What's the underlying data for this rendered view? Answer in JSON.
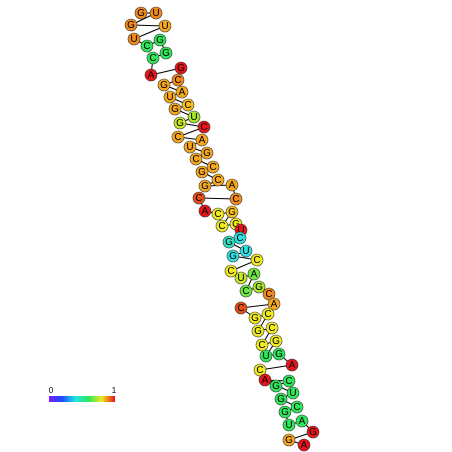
{
  "nodes": [
    {
      "label": "G",
      "color": "#f08a1c"
    },
    {
      "label": "U",
      "color": "#f08a1c"
    },
    {
      "label": "G",
      "color": "#f08a1c"
    },
    {
      "label": "U",
      "color": "#f5a81e"
    },
    {
      "label": "U",
      "color": "#f08a1c"
    },
    {
      "label": "C",
      "color": "#2ee65a"
    },
    {
      "label": "G",
      "color": "#2ee65a"
    },
    {
      "label": "G",
      "color": "#2ee65a"
    },
    {
      "label": "C",
      "color": "#2ee65a"
    },
    {
      "label": "A",
      "color": "#e8141a"
    },
    {
      "label": "G",
      "color": "#e8141a"
    },
    {
      "label": "C",
      "color": "#f08a1c"
    },
    {
      "label": "G",
      "color": "#f5a81e"
    },
    {
      "label": "A",
      "color": "#f5a81e"
    },
    {
      "label": "U",
      "color": "#f5a81e"
    },
    {
      "label": "C",
      "color": "#f5c01e"
    },
    {
      "label": "G",
      "color": "#f5a81e"
    },
    {
      "label": "U",
      "color": "#a5e62c"
    },
    {
      "label": "G",
      "color": "#c8e628"
    },
    {
      "label": "C",
      "color": "#e8141a"
    },
    {
      "label": "C",
      "color": "#f5a81e"
    },
    {
      "label": "A",
      "color": "#f5a81e"
    },
    {
      "label": "U",
      "color": "#f5a81e"
    },
    {
      "label": "G",
      "color": "#f5a81e"
    },
    {
      "label": "C",
      "color": "#f5a81e"
    },
    {
      "label": "C",
      "color": "#f5a81e"
    },
    {
      "label": "G",
      "color": "#f5a81e"
    },
    {
      "label": "C",
      "color": "#f5a81e"
    },
    {
      "label": "G",
      "color": "#f5a81e"
    },
    {
      "label": "A",
      "color": "#f5a81e"
    },
    {
      "label": "C",
      "color": "#f08a1c"
    },
    {
      "label": "C",
      "color": "#e8501a"
    },
    {
      "label": "A",
      "color": "#e8141a"
    },
    {
      "label": "C",
      "color": "#f0ea22"
    },
    {
      "label": "G",
      "color": "#f5c01e"
    },
    {
      "label": "C",
      "color": "#f0ea22"
    },
    {
      "label": "G",
      "color": "#f0ea22"
    },
    {
      "label": "U",
      "color": "#e8141a"
    },
    {
      "label": "C",
      "color": "#30e0e0"
    },
    {
      "label": "G",
      "color": "#30e0c0"
    },
    {
      "label": "U",
      "color": "#30e0e0"
    },
    {
      "label": "G",
      "color": "#30e0e0"
    },
    {
      "label": "C",
      "color": "#f0ea22"
    },
    {
      "label": "C",
      "color": "#f0ea22"
    },
    {
      "label": "U",
      "color": "#c8e628"
    },
    {
      "label": "A",
      "color": "#6ee640"
    },
    {
      "label": "C",
      "color": "#6ee640"
    },
    {
      "label": "G",
      "color": "#a5e62c"
    },
    {
      "label": "C",
      "color": "#f08a1c"
    },
    {
      "label": "A",
      "color": "#f5a81e"
    },
    {
      "label": "C",
      "color": "#e8501a"
    },
    {
      "label": "G",
      "color": "#f0ea22"
    },
    {
      "label": "C",
      "color": "#f0ea22"
    },
    {
      "label": "G",
      "color": "#f0ea22"
    },
    {
      "label": "C",
      "color": "#f0ea22"
    },
    {
      "label": "C",
      "color": "#f0ea22"
    },
    {
      "label": "G",
      "color": "#f0ea22"
    },
    {
      "label": "U",
      "color": "#2ee65a"
    },
    {
      "label": "G",
      "color": "#2ee65a"
    },
    {
      "label": "A",
      "color": "#e8141a"
    },
    {
      "label": "C",
      "color": "#f0ea22"
    },
    {
      "label": "G",
      "color": "#2ee65a"
    },
    {
      "label": "C",
      "color": "#2ee65a"
    },
    {
      "label": "A",
      "color": "#e8141a"
    },
    {
      "label": "U",
      "color": "#2ee65a"
    },
    {
      "label": "G",
      "color": "#2ee65a"
    },
    {
      "label": "C",
      "color": "#2ee65a"
    },
    {
      "label": "G",
      "color": "#2ee65a"
    },
    {
      "label": "U",
      "color": "#2ee65a"
    },
    {
      "label": "A",
      "color": "#2ee65a"
    },
    {
      "label": "G",
      "color": "#e8141a"
    },
    {
      "label": "G",
      "color": "#f5a81e"
    },
    {
      "label": "A",
      "color": "#e8141a"
    }
  ],
  "colorbar": {
    "min_label": "0",
    "max_label": "1"
  }
}
